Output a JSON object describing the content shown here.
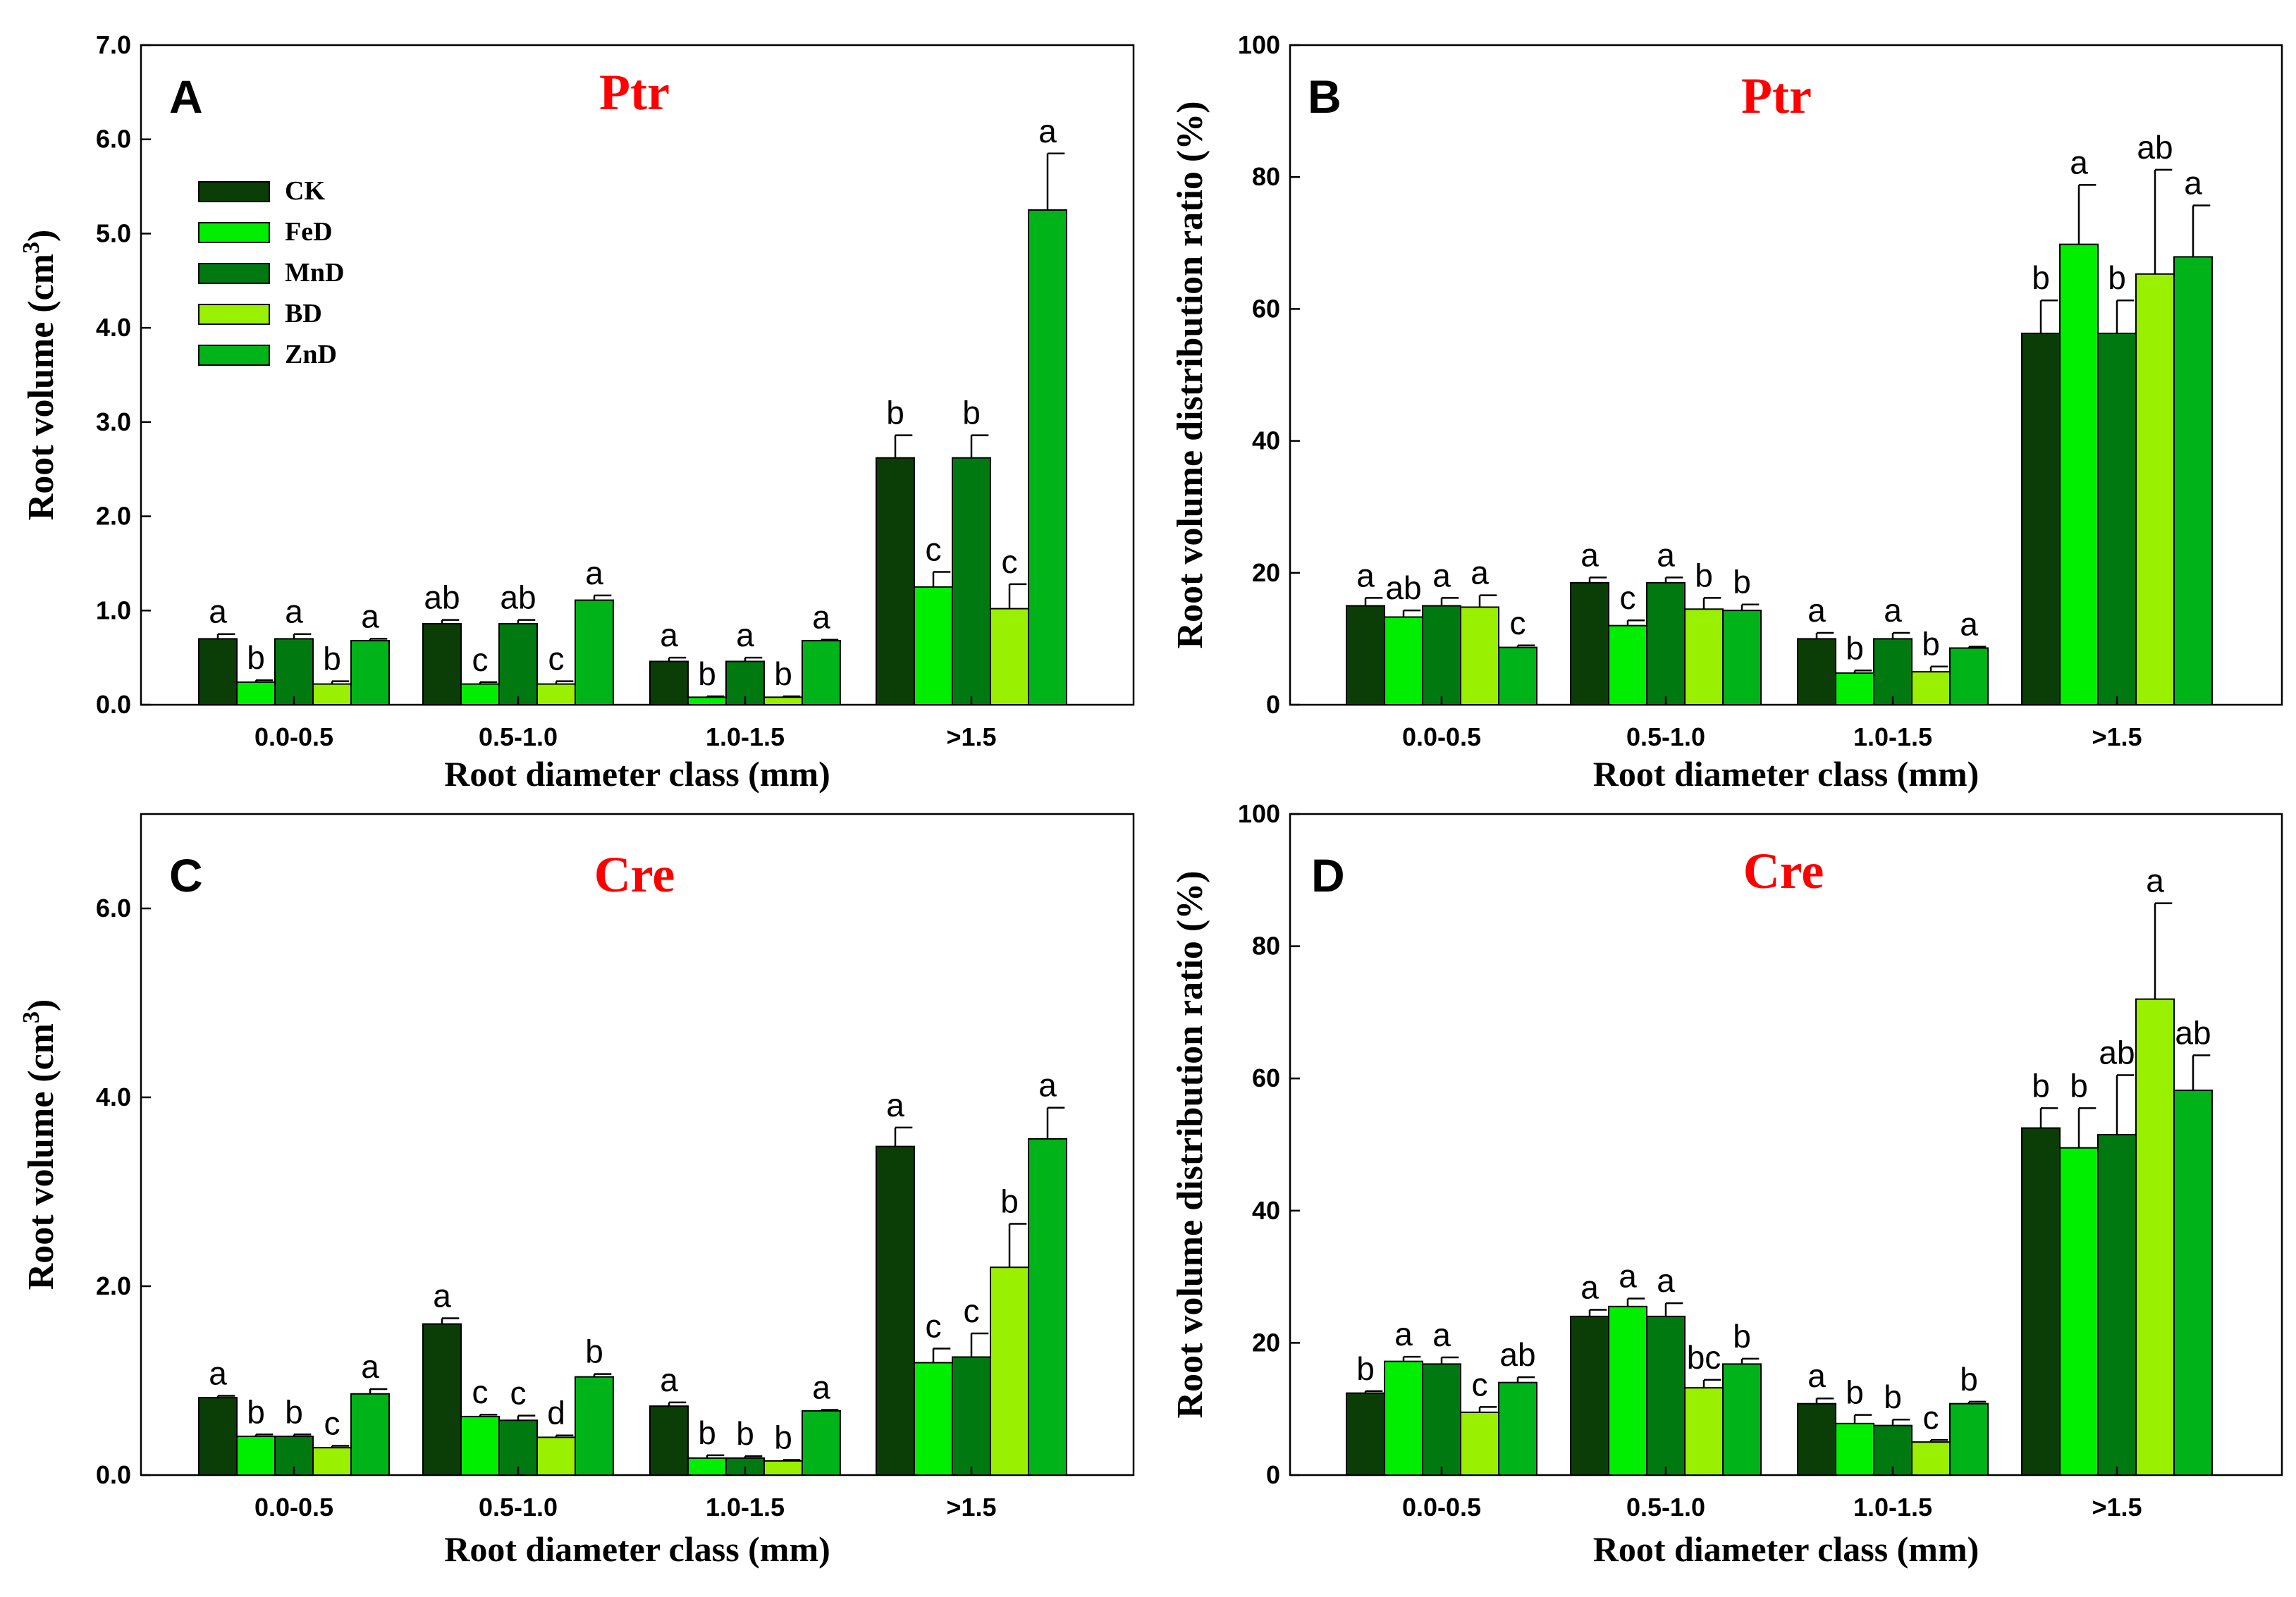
{
  "legend": {
    "entries": [
      "CK",
      "FeD",
      "MnD",
      "BD",
      "ZnD"
    ],
    "colors": [
      "#0b3d06",
      "#00ee00",
      "#007a10",
      "#99f000",
      "#00b319"
    ]
  },
  "chart_data": [
    {
      "type": "bar",
      "panel_label": "A",
      "title": "Ptr",
      "ylabel": "Root volume (cm",
      "ylabel_sup": "3",
      "ylabel_end": ")",
      "xlabel": "Root diameter class (mm)",
      "ylim": [
        0,
        7
      ],
      "yticks": [
        "0.0",
        "1.0",
        "2.0",
        "3.0",
        "4.0",
        "5.0",
        "6.0",
        "7.0"
      ],
      "categories": [
        "0.0-0.5",
        "0.5-1.0",
        "1.0-1.5",
        ">1.5"
      ],
      "legend_position": "top-left",
      "series": [
        {
          "name": "CK",
          "values": [
            0.7,
            0.86,
            0.46,
            2.62
          ],
          "errors": [
            0.05,
            0.04,
            0.04,
            0.24
          ],
          "letters": [
            "a",
            "ab",
            "a",
            "b"
          ]
        },
        {
          "name": "FeD",
          "values": [
            0.24,
            0.22,
            0.08,
            1.25
          ],
          "errors": [
            0.02,
            0.02,
            0.01,
            0.16
          ],
          "letters": [
            "b",
            "c",
            "b",
            "c"
          ]
        },
        {
          "name": "MnD",
          "values": [
            0.7,
            0.86,
            0.46,
            2.62
          ],
          "errors": [
            0.05,
            0.04,
            0.04,
            0.24
          ],
          "letters": [
            "a",
            "ab",
            "a",
            "b"
          ]
        },
        {
          "name": "BD",
          "values": [
            0.22,
            0.22,
            0.08,
            1.02
          ],
          "errors": [
            0.03,
            0.03,
            0.01,
            0.26
          ],
          "letters": [
            "b",
            "c",
            "b",
            "c"
          ]
        },
        {
          "name": "ZnD",
          "values": [
            0.68,
            1.11,
            0.68,
            5.25
          ],
          "errors": [
            0.02,
            0.05,
            0.01,
            0.6
          ],
          "letters": [
            "a",
            "a",
            "a",
            "a"
          ]
        }
      ]
    },
    {
      "type": "bar",
      "panel_label": "B",
      "title": "Ptr",
      "ylabel": "Root volume distribution ratio (%)",
      "xlabel": "Root diameter class (mm)",
      "ylim": [
        0,
        100
      ],
      "yticks": [
        "0",
        "20",
        "40",
        "60",
        "80",
        "100"
      ],
      "categories": [
        "0.0-0.5",
        "0.5-1.0",
        "1.0-1.5",
        ">1.5"
      ],
      "series": [
        {
          "name": "CK",
          "values": [
            15.0,
            18.5,
            10.0,
            56.3
          ],
          "errors": [
            1.2,
            0.8,
            0.9,
            5.0
          ],
          "letters": [
            "a",
            "a",
            "a",
            "b"
          ]
        },
        {
          "name": "FeD",
          "values": [
            13.3,
            12.0,
            4.8,
            69.8
          ],
          "errors": [
            1.0,
            0.8,
            0.4,
            9.0
          ],
          "letters": [
            "ab",
            "c",
            "b",
            "a"
          ]
        },
        {
          "name": "MnD",
          "values": [
            15.0,
            18.5,
            10.0,
            56.3
          ],
          "errors": [
            1.2,
            0.8,
            0.9,
            5.0
          ],
          "letters": [
            "a",
            "a",
            "a",
            "b"
          ]
        },
        {
          "name": "BD",
          "values": [
            14.8,
            14.5,
            5.0,
            65.3
          ],
          "errors": [
            1.8,
            1.7,
            0.8,
            15.8
          ],
          "letters": [
            "a",
            "b",
            "b",
            "ab"
          ]
        },
        {
          "name": "ZnD",
          "values": [
            8.7,
            14.3,
            8.6,
            67.9
          ],
          "errors": [
            0.3,
            0.9,
            0.2,
            7.8
          ],
          "letters": [
            "c",
            "b",
            "a",
            "a"
          ]
        }
      ]
    },
    {
      "type": "bar",
      "panel_label": "C",
      "title": "Cre",
      "ylabel": "Root volume (cm",
      "ylabel_sup": "3",
      "ylabel_end": ")",
      "xlabel": "Root diameter class (mm)",
      "ylim": [
        0,
        7
      ],
      "yticks": [
        "0.0",
        "2.0",
        "4.0",
        "6.0"
      ],
      "ytick_values": [
        0,
        2,
        4,
        6
      ],
      "categories": [
        "0.0-0.5",
        "0.5-1.0",
        "1.0-1.5",
        ">1.5"
      ],
      "series": [
        {
          "name": "CK",
          "values": [
            0.82,
            1.6,
            0.73,
            3.48
          ],
          "errors": [
            0.02,
            0.06,
            0.04,
            0.2
          ],
          "letters": [
            "a",
            "a",
            "a",
            "a"
          ]
        },
        {
          "name": "FeD",
          "values": [
            0.41,
            0.62,
            0.18,
            1.19
          ],
          "errors": [
            0.02,
            0.02,
            0.03,
            0.15
          ],
          "letters": [
            "b",
            "c",
            "b",
            "c"
          ]
        },
        {
          "name": "MnD",
          "values": [
            0.41,
            0.58,
            0.18,
            1.25
          ],
          "errors": [
            0.02,
            0.05,
            0.02,
            0.25
          ],
          "letters": [
            "b",
            "c",
            "b",
            "c"
          ]
        },
        {
          "name": "BD",
          "values": [
            0.29,
            0.4,
            0.15,
            2.2
          ],
          "errors": [
            0.02,
            0.02,
            0.01,
            0.46
          ],
          "letters": [
            "c",
            "d",
            "b",
            "b"
          ]
        },
        {
          "name": "ZnD",
          "values": [
            0.86,
            1.04,
            0.68,
            3.56
          ],
          "errors": [
            0.05,
            0.03,
            0.01,
            0.33
          ],
          "letters": [
            "a",
            "b",
            "a",
            "a"
          ]
        }
      ]
    },
    {
      "type": "bar",
      "panel_label": "D",
      "title": "Cre",
      "ylabel": "Root volume distribution ratio (%)",
      "xlabel": "Root diameter class (mm)",
      "ylim": [
        0,
        100
      ],
      "yticks": [
        "0",
        "20",
        "40",
        "60",
        "80",
        "100"
      ],
      "categories": [
        "0.0-0.5",
        "0.5-1.0",
        "1.0-1.5",
        ">1.5"
      ],
      "series": [
        {
          "name": "CK",
          "values": [
            12.4,
            24.0,
            10.8,
            52.5
          ],
          "errors": [
            0.3,
            1.0,
            0.8,
            3.0
          ],
          "letters": [
            "b",
            "a",
            "a",
            "b"
          ]
        },
        {
          "name": "FeD",
          "values": [
            17.2,
            25.5,
            7.8,
            49.5
          ],
          "errors": [
            0.7,
            1.2,
            1.3,
            6.0
          ],
          "letters": [
            "a",
            "a",
            "b",
            "b"
          ]
        },
        {
          "name": "MnD",
          "values": [
            16.8,
            24.0,
            7.5,
            51.5
          ],
          "errors": [
            1.0,
            2.0,
            0.9,
            9.0
          ],
          "letters": [
            "a",
            "a",
            "b",
            "ab"
          ]
        },
        {
          "name": "BD",
          "values": [
            9.5,
            13.2,
            5.0,
            72.0
          ],
          "errors": [
            0.8,
            1.2,
            0.3,
            14.5
          ],
          "letters": [
            "c",
            "bc",
            "c",
            "a"
          ]
        },
        {
          "name": "ZnD",
          "values": [
            14.0,
            16.8,
            10.8,
            58.2
          ],
          "errors": [
            0.8,
            0.8,
            0.3,
            5.3
          ],
          "letters": [
            "ab",
            "b",
            "b",
            "ab"
          ]
        }
      ]
    }
  ]
}
